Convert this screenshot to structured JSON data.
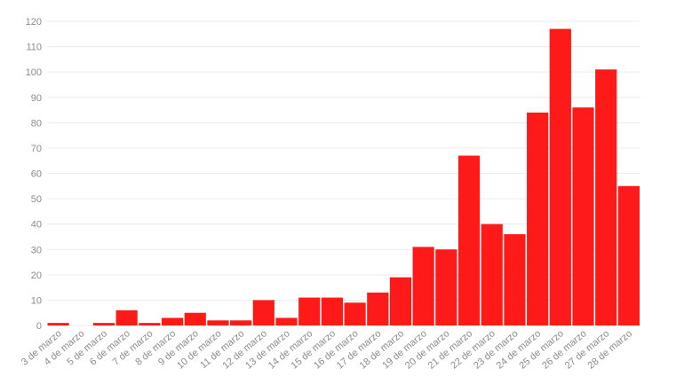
{
  "chart_data": {
    "type": "bar",
    "title": "",
    "xlabel": "",
    "ylabel": "",
    "ylim": [
      0,
      120
    ],
    "yticks": [
      0,
      10,
      20,
      30,
      40,
      50,
      60,
      70,
      80,
      90,
      100,
      110,
      120
    ],
    "grid": true,
    "bar_color": "#ff1a1a",
    "categories": [
      "3 de marzo",
      "4 de marzo",
      "5 de marzo",
      "6 de marzo",
      "7 de marzo",
      "8 de marzo",
      "9 de marzo",
      "10 de marzo",
      "11 de marzo",
      "12 de marzo",
      "13 de marzo",
      "14 de marzo",
      "15 de marzo",
      "16 de marzo",
      "17 de marzo",
      "18 de marzo",
      "19 de marzo",
      "20 de marzo",
      "21 de marzo",
      "22 de marzo",
      "23 de marzo",
      "24 de marzo",
      "25 de marzo",
      "26 de marzo",
      "27 de marzo",
      "28 de marzo"
    ],
    "values": [
      1,
      0,
      1,
      6,
      1,
      3,
      5,
      2,
      2,
      10,
      3,
      11,
      11,
      9,
      13,
      19,
      31,
      30,
      67,
      40,
      36,
      84,
      117,
      86,
      101,
      55
    ]
  }
}
